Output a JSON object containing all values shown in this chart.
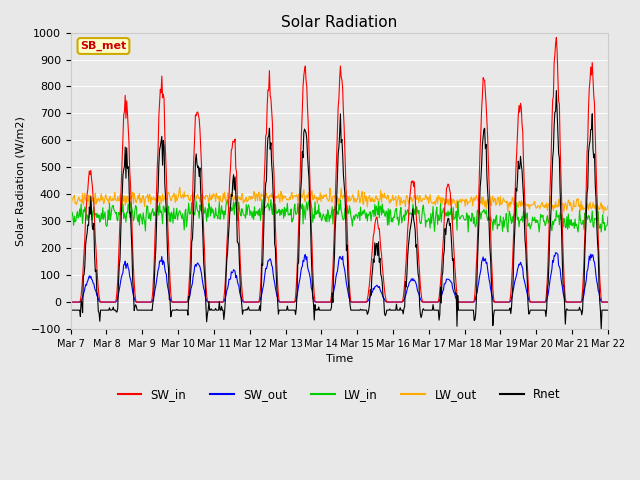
{
  "title": "Solar Radiation",
  "ylabel": "Solar Radiation (W/m2)",
  "xlabel": "Time",
  "ylim": [
    -100,
    1000
  ],
  "background_color": "#e8e8e8",
  "annotation_text": "SB_met",
  "annotation_bg": "#ffffcc",
  "annotation_border": "#ccaa00",
  "xtick_labels": [
    "Mar 7",
    "Mar 8",
    "Mar 9",
    "Mar 10",
    "Mar 11",
    "Mar 12",
    "Mar 13",
    "Mar 14",
    "Mar 15",
    "Mar 16",
    "Mar 17",
    "Mar 18",
    "Mar 19",
    "Mar 20",
    "Mar 21",
    "Mar 22"
  ],
  "series": {
    "SW_in": {
      "color": "#ff0000",
      "lw": 0.8
    },
    "SW_out": {
      "color": "#0000ff",
      "lw": 0.8
    },
    "LW_in": {
      "color": "#00cc00",
      "lw": 0.8
    },
    "LW_out": {
      "color": "#ffaa00",
      "lw": 0.8
    },
    "Rnet": {
      "color": "#000000",
      "lw": 0.8
    }
  },
  "sw_in_peaks": [
    490,
    740,
    805,
    725,
    605,
    820,
    845,
    840,
    310,
    460,
    445,
    820,
    725,
    940,
    875
  ],
  "lw_in_mean": 310,
  "lw_out_mean": 365
}
